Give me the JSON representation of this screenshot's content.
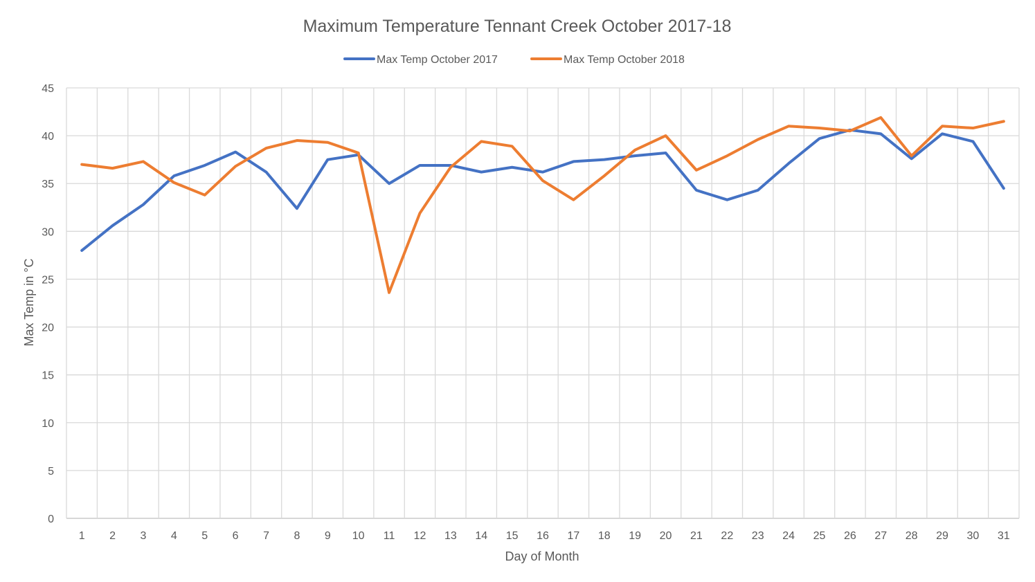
{
  "chart_data": {
    "type": "line",
    "title": "Maximum Temperature Tennant Creek October 2017-18",
    "xlabel": "Day of Month",
    "ylabel": "Max Temp in °C",
    "ylim": [
      0,
      45
    ],
    "ytick_step": 5,
    "categories": [
      "1",
      "2",
      "3",
      "4",
      "5",
      "6",
      "7",
      "8",
      "9",
      "10",
      "11",
      "12",
      "13",
      "14",
      "15",
      "16",
      "17",
      "18",
      "19",
      "20",
      "21",
      "22",
      "23",
      "24",
      "25",
      "26",
      "27",
      "28",
      "29",
      "30",
      "31"
    ],
    "grid": true,
    "legend_position": "top",
    "series": [
      {
        "name": "Max Temp October 2017",
        "color": "#4472C4",
        "values": [
          28.0,
          30.6,
          32.8,
          35.8,
          36.9,
          38.3,
          36.2,
          32.4,
          37.5,
          38.0,
          35.0,
          36.9,
          36.9,
          36.2,
          36.7,
          36.2,
          37.3,
          37.5,
          37.9,
          38.2,
          34.3,
          33.3,
          34.3,
          37.1,
          39.7,
          40.6,
          40.2,
          37.6,
          40.2,
          39.4,
          34.5
        ]
      },
      {
        "name": "Max Temp October 2018",
        "color": "#ED7D31",
        "values": [
          37.0,
          36.6,
          37.3,
          35.1,
          33.8,
          36.8,
          38.7,
          39.5,
          39.3,
          38.2,
          23.6,
          31.9,
          36.7,
          39.4,
          38.9,
          35.3,
          33.3,
          35.8,
          38.5,
          40.0,
          36.4,
          37.9,
          39.6,
          41.0,
          40.8,
          40.5,
          41.9,
          37.9,
          41.0,
          40.8,
          41.5
        ]
      }
    ]
  }
}
